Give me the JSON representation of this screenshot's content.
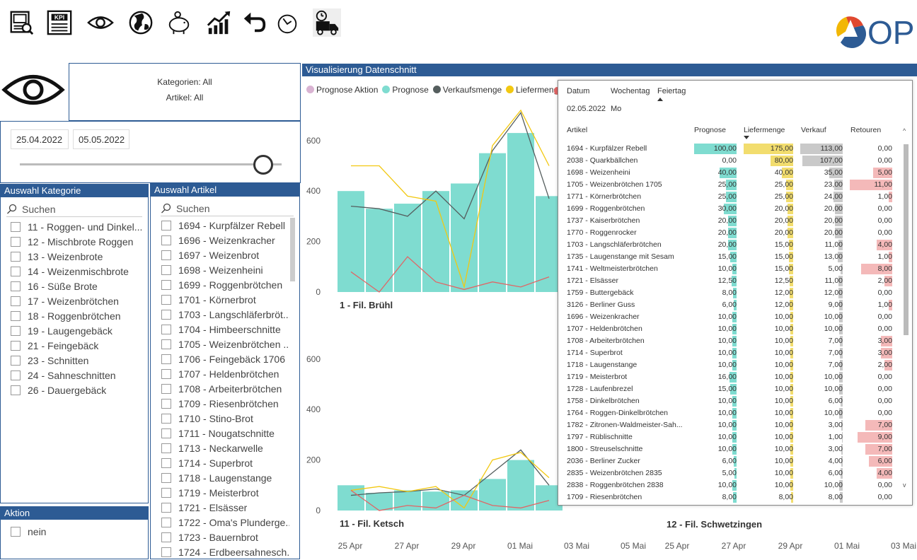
{
  "toolbar": {
    "icons": [
      "report-icon",
      "kpi-icon",
      "eye-icon",
      "globe-icon",
      "piggy-bank-icon",
      "growth-chart-icon",
      "undo-icon",
      "reset-icon",
      "delivery-truck-icon"
    ],
    "kpi_text": "KPI",
    "logo_text": "OP"
  },
  "filter_summary": {
    "kategorien": "Kategorien: All",
    "artikel": "Artikel: All"
  },
  "date_range": {
    "start": "25.04.2022",
    "end": "05.05.2022"
  },
  "kategorie_panel": {
    "title": "Auswahl Kategorie",
    "search_placeholder": "Suchen",
    "items": [
      "11 - Roggen- und Dinkel...",
      "12 - Mischbrote Roggen",
      "13 - Weizenbrote",
      "14 - Weizenmischbrote",
      "16 - Süße Brote",
      "17 - Weizenbrötchen",
      "18 - Roggenbrötchen",
      "19 - Laugengebäck",
      "21 - Feingebäck",
      "23 - Schnitten",
      "24 - Sahneschnitten",
      "26 - Dauergebäck"
    ]
  },
  "artikel_panel": {
    "title": "Auswahl Artikel",
    "search_placeholder": "Suchen",
    "items": [
      "1694 - Kurpfälzer Rebell",
      "1696 - Weizenkracher",
      "1697 - Weizenbrot",
      "1698 - Weizenheini",
      "1699 - Roggenbrötchen",
      "1701 - Körnerbrot",
      "1703 - Langschläferbröt...",
      "1704 - Himbeerschnitte",
      "1705 - Weizenbrötchen ...",
      "1706 - Feingebäck 1706",
      "1707 - Heldenbrötchen",
      "1708 - Arbeiterbrötchen",
      "1709 - Riesenbrötchen",
      "1710 - Stino-Brot",
      "1711 - Nougatschnitte",
      "1713 - Neckarwelle",
      "1714 - Superbrot",
      "1718 - Laugenstange",
      "1719 - Meisterbrot",
      "1721 - Elsässer",
      "1722 - Oma's Plunderge...",
      "1723 - Bauernbrot",
      "1724 - Erdbeersahnesch..."
    ]
  },
  "aktion_panel": {
    "title": "Aktion",
    "items": [
      "nein"
    ]
  },
  "visual": {
    "title": "Visualisierung Datenschnitt",
    "legend": [
      {
        "name": "Prognose Aktion",
        "color": "#d9b3d2"
      },
      {
        "name": "Prognose",
        "color": "#7fdcd0"
      },
      {
        "name": "Verkaufsmenge",
        "color": "#555e5e"
      },
      {
        "name": "Liefermenge",
        "color": "#f2c811"
      }
    ],
    "panel_titles": [
      "1 - Fil. Brühl",
      "11 - Fil. Ketsch",
      "12 - Fil. Schwetzingen"
    ],
    "x_ticks_left": [
      "25 Apr",
      "27 Apr",
      "29 Apr",
      "01 Mai",
      "03 Mai",
      "05 Mai"
    ],
    "x_ticks_right": [
      "25 Apr",
      "27 Apr",
      "29 Apr",
      "01 Mai",
      "03 Mai"
    ],
    "y_ticks": [
      "0",
      "200",
      "400",
      "600"
    ]
  },
  "chart_data": [
    {
      "type": "bar",
      "title": "1 - Fil. Brühl",
      "x": [
        "25 Apr",
        "26 Apr",
        "27 Apr",
        "28 Apr",
        "29 Apr",
        "30 Apr",
        "01 Mai",
        "02 Mai"
      ],
      "ylim": [
        0,
        700
      ],
      "series": [
        {
          "name": "Prognose",
          "type": "bar",
          "color": "#7fdcd0",
          "values": [
            400,
            330,
            350,
            400,
            430,
            550,
            630,
            380
          ]
        },
        {
          "name": "Verkaufsmenge",
          "type": "line",
          "color": "#555e5e",
          "values": [
            340,
            330,
            300,
            400,
            290,
            560,
            710,
            370
          ]
        },
        {
          "name": "Liefermenge",
          "type": "line",
          "color": "#f2c811",
          "values": [
            500,
            500,
            380,
            360,
            20,
            580,
            720,
            500
          ]
        },
        {
          "name": "Retouren",
          "type": "line",
          "color": "#e06666",
          "values": [
            80,
            0,
            140,
            40,
            10,
            40,
            20,
            60
          ]
        }
      ]
    },
    {
      "type": "bar",
      "title": "11 - Fil. Ketsch",
      "x": [
        "25 Apr",
        "26 Apr",
        "27 Apr",
        "28 Apr",
        "29 Apr",
        "30 Apr",
        "01 Mai",
        "02 Mai"
      ],
      "ylim": [
        0,
        700
      ],
      "series": [
        {
          "name": "Prognose",
          "type": "bar",
          "color": "#7fdcd0",
          "values": [
            100,
            70,
            80,
            75,
            80,
            125,
            200,
            100
          ]
        },
        {
          "name": "Verkaufsmenge",
          "type": "line",
          "color": "#555e5e",
          "values": [
            60,
            70,
            75,
            85,
            60,
            150,
            240,
            100
          ]
        },
        {
          "name": "Liefermenge",
          "type": "line",
          "color": "#f2c811",
          "values": [
            80,
            95,
            75,
            95,
            10,
            200,
            230,
            130
          ]
        },
        {
          "name": "Retouren",
          "type": "line",
          "color": "#e06666",
          "values": [
            80,
            0,
            20,
            10,
            60,
            20,
            10,
            40
          ]
        }
      ]
    }
  ],
  "tooltip": {
    "date_header": "Datum",
    "wochentag_header": "Wochentag",
    "feiertag_header": "Feiertag",
    "date_value": "02.05.2022",
    "wochentag_value": "Mo",
    "columns": [
      "Artikel",
      "Prognose",
      "Liefermenge",
      "Verkauf",
      "Retouren"
    ],
    "rows": [
      [
        "1694 - Kurpfälzer Rebell",
        "100,00",
        "175,00",
        "113,00",
        "0,00"
      ],
      [
        "2038 - Quarkbällchen",
        "0,00",
        "80,00",
        "107,00",
        "0,00"
      ],
      [
        "1698 - Weizenheini",
        "40,00",
        "40,00",
        "35,00",
        "5,00"
      ],
      [
        "1705 - Weizenbrötchen 1705",
        "25,00",
        "25,00",
        "23,00",
        "11,00"
      ],
      [
        "1771 - Körnerbrötchen",
        "25,00",
        "25,00",
        "24,00",
        "1,00"
      ],
      [
        "1699 - Roggenbrötchen",
        "30,00",
        "20,00",
        "20,00",
        "0,00"
      ],
      [
        "1737 - Kaiserbrötchen",
        "20,00",
        "20,00",
        "20,00",
        "0,00"
      ],
      [
        "1770 - Roggenrocker",
        "20,00",
        "20,00",
        "20,00",
        "0,00"
      ],
      [
        "1703 - Langschläferbrötchen",
        "20,00",
        "15,00",
        "11,00",
        "4,00"
      ],
      [
        "1735 - Laugenstange mit Sesam",
        "15,00",
        "15,00",
        "13,00",
        "1,00"
      ],
      [
        "1741 - Weltmeisterbrötchen",
        "10,00",
        "15,00",
        "5,00",
        "8,00"
      ],
      [
        "1721 - Elsässer",
        "12,50",
        "12,50",
        "11,00",
        "2,00"
      ],
      [
        "1759 - Buttergebäck",
        "8,00",
        "12,00",
        "12,00",
        "0,00"
      ],
      [
        "3126 - Berliner Guss",
        "6,00",
        "12,00",
        "9,00",
        "1,00"
      ],
      [
        "1696 - Weizenkracher",
        "10,00",
        "10,00",
        "10,00",
        "0,00"
      ],
      [
        "1707 - Heldenbrötchen",
        "10,00",
        "10,00",
        "10,00",
        "0,00"
      ],
      [
        "1708 - Arbeiterbrötchen",
        "10,00",
        "10,00",
        "7,00",
        "3,00"
      ],
      [
        "1714 - Superbrot",
        "10,00",
        "10,00",
        "7,00",
        "3,00"
      ],
      [
        "1718 - Laugenstange",
        "10,00",
        "10,00",
        "7,00",
        "2,00"
      ],
      [
        "1719 - Meisterbrot",
        "16,00",
        "10,00",
        "10,00",
        "0,00"
      ],
      [
        "1728 - Laufenbrezel",
        "15,00",
        "10,00",
        "10,00",
        "0,00"
      ],
      [
        "1758 - Dinkelbrötchen",
        "10,00",
        "10,00",
        "6,00",
        "0,00"
      ],
      [
        "1764 - Roggen-Dinkelbrötchen",
        "10,00",
        "10,00",
        "10,00",
        "0,00"
      ],
      [
        "1782 - Zitronen-Waldmeister-Sah...",
        "10,00",
        "10,00",
        "3,00",
        "7,00"
      ],
      [
        "1797 - Rüblischnitte",
        "10,00",
        "10,00",
        "1,00",
        "9,00"
      ],
      [
        "1800 - Streuselschnitte",
        "10,00",
        "10,00",
        "3,00",
        "7,00"
      ],
      [
        "2036 - Berliner Zucker",
        "6,00",
        "10,00",
        "4,00",
        "6,00"
      ],
      [
        "2835 - Weizenbrötchen 2835",
        "5,00",
        "10,00",
        "6,00",
        "4,00"
      ],
      [
        "2838 - Roggenbrötchen 2838",
        "10,00",
        "10,00",
        "10,00",
        "0,00"
      ],
      [
        "1709 - Riesenbrötchen",
        "8,00",
        "8,00",
        "8,00",
        "0,00"
      ]
    ]
  }
}
